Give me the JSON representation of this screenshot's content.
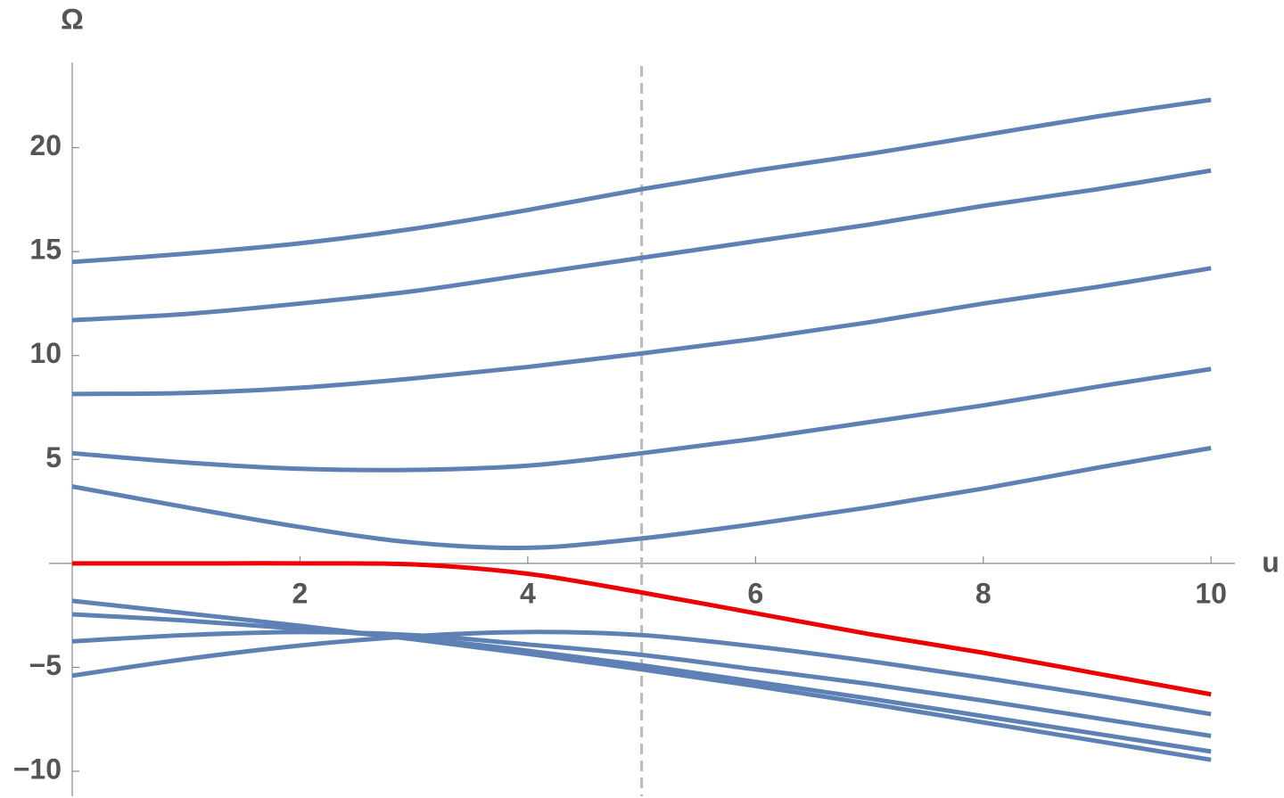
{
  "chart_data": {
    "type": "line",
    "x_label": "u",
    "y_label": "Ω",
    "x": [
      0,
      1,
      2,
      3,
      4,
      5,
      6,
      7,
      8,
      9,
      10
    ],
    "series": [
      {
        "color": "#5e81b5",
        "values": [
          14.5,
          14.9,
          15.4,
          16.1,
          17.0,
          18.0,
          18.9,
          19.7,
          20.6,
          21.5,
          22.3
        ]
      },
      {
        "color": "#5e81b5",
        "values": [
          11.7,
          12.0,
          12.5,
          13.1,
          13.9,
          14.7,
          15.5,
          16.3,
          17.2,
          18.0,
          18.9
        ]
      },
      {
        "color": "#5e81b5",
        "values": [
          8.15,
          8.2,
          8.45,
          8.9,
          9.45,
          10.1,
          10.8,
          11.6,
          12.5,
          13.3,
          14.2
        ]
      },
      {
        "color": "#5e81b5",
        "values": [
          5.3,
          4.85,
          4.55,
          4.5,
          4.7,
          5.3,
          6.0,
          6.8,
          7.6,
          8.5,
          9.35
        ]
      },
      {
        "color": "#5e81b5",
        "values": [
          3.7,
          2.7,
          1.75,
          1.0,
          0.75,
          1.2,
          1.9,
          2.7,
          3.6,
          4.6,
          5.55
        ]
      },
      {
        "color": "#5e81b5",
        "values": [
          -1.8,
          -2.4,
          -3.0,
          -3.65,
          -4.35,
          -5.1,
          -5.9,
          -6.75,
          -7.65,
          -8.55,
          -9.45
        ]
      },
      {
        "color": "#5e81b5",
        "values": [
          -2.45,
          -2.75,
          -3.15,
          -3.6,
          -4.2,
          -4.9,
          -5.7,
          -6.5,
          -7.35,
          -8.2,
          -9.05
        ]
      },
      {
        "color": "#5e81b5",
        "values": [
          -3.75,
          -3.45,
          -3.3,
          -3.45,
          -3.9,
          -4.4,
          -5.1,
          -5.8,
          -6.6,
          -7.45,
          -8.3
        ]
      },
      {
        "color": "#5e81b5",
        "values": [
          -5.4,
          -4.6,
          -3.95,
          -3.5,
          -3.3,
          -3.45,
          -4.0,
          -4.7,
          -5.5,
          -6.35,
          -7.25
        ]
      },
      {
        "color": "#ee0000",
        "values": [
          0,
          0,
          0,
          -0.05,
          -0.5,
          -1.4,
          -2.4,
          -3.4,
          -4.3,
          -5.3,
          -6.3
        ]
      }
    ],
    "xlim": [
      0,
      10.21
    ],
    "ylim": [
      -11.2,
      24.1
    ],
    "xticks": [
      2,
      4,
      6,
      8,
      10
    ],
    "yticks": [
      {
        "value": -10,
        "label": "−10"
      },
      {
        "value": -5,
        "label": "−5"
      },
      5,
      10,
      15,
      20
    ],
    "vlines": [
      5
    ],
    "grid": false
  }
}
